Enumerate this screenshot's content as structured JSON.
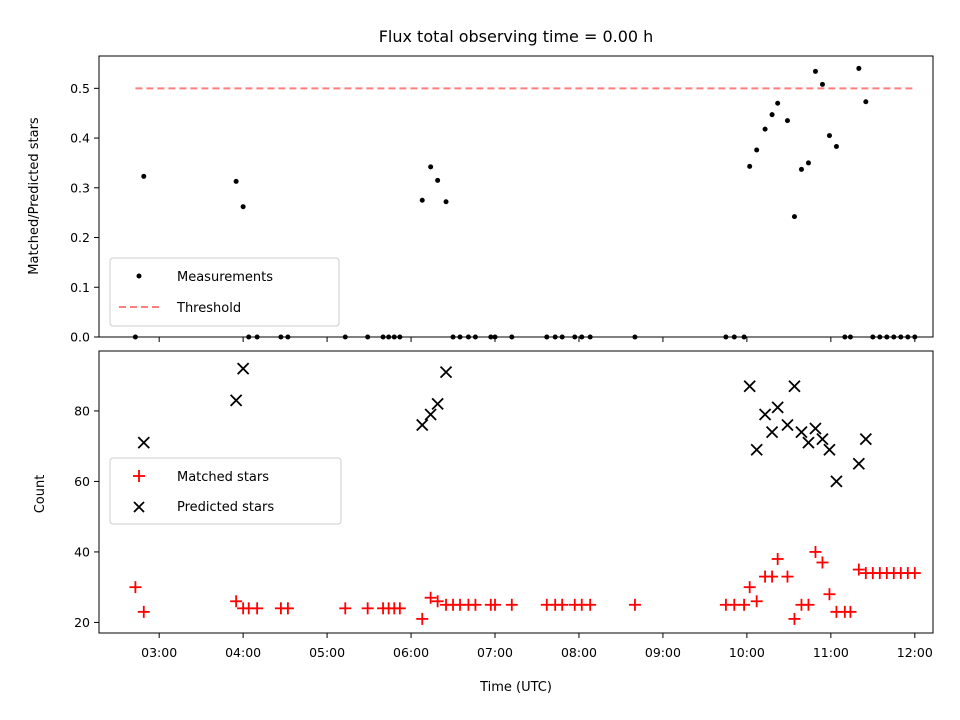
{
  "chart_data": [
    {
      "type": "scatter",
      "title": "Flux total observing time = 0.00 h",
      "xlabel": "",
      "ylabel": "Matched/Predicted stars",
      "xlim": [
        "02:17",
        "12:13"
      ],
      "ylim": [
        0,
        0.565
      ],
      "yticks": [
        "0.0",
        "0.1",
        "0.2",
        "0.3",
        "0.4",
        "0.5"
      ],
      "legend_position": "lower-left",
      "series": [
        {
          "name": "Measurements",
          "marker": "dot",
          "color": "#000000",
          "points": [
            [
              "02:43",
              0
            ],
            [
              "02:49",
              0.323
            ],
            [
              "03:55",
              0.313
            ],
            [
              "04:00",
              0.262
            ],
            [
              "04:04",
              0
            ],
            [
              "04:10",
              0
            ],
            [
              "04:27",
              0
            ],
            [
              "04:32",
              0
            ],
            [
              "05:13",
              0
            ],
            [
              "05:29",
              0
            ],
            [
              "05:40",
              0
            ],
            [
              "05:44",
              0
            ],
            [
              "05:48",
              0
            ],
            [
              "05:52",
              0
            ],
            [
              "06:08",
              0.275
            ],
            [
              "06:14",
              0.342
            ],
            [
              "06:19",
              0.315
            ],
            [
              "06:25",
              0.272
            ],
            [
              "06:30",
              0
            ],
            [
              "06:35",
              0
            ],
            [
              "06:41",
              0
            ],
            [
              "06:46",
              0
            ],
            [
              "06:57",
              0
            ],
            [
              "07:00",
              0
            ],
            [
              "07:12",
              0
            ],
            [
              "07:37",
              0
            ],
            [
              "07:43",
              0
            ],
            [
              "07:48",
              0
            ],
            [
              "07:57",
              0
            ],
            [
              "08:02",
              0
            ],
            [
              "08:08",
              0
            ],
            [
              "08:40",
              0
            ],
            [
              "09:45",
              0
            ],
            [
              "09:51",
              0
            ],
            [
              "09:58",
              0
            ],
            [
              "10:02",
              0.343
            ],
            [
              "10:07",
              0.376
            ],
            [
              "10:13",
              0.418
            ],
            [
              "10:18",
              0.447
            ],
            [
              "10:22",
              0.47
            ],
            [
              "10:29",
              0.435
            ],
            [
              "10:34",
              0.242
            ],
            [
              "10:39",
              0.337
            ],
            [
              "10:44",
              0.35
            ],
            [
              "10:49",
              0.534
            ],
            [
              "10:54",
              0.508
            ],
            [
              "10:59",
              0.405
            ],
            [
              "11:04",
              0.383
            ],
            [
              "11:10",
              0
            ],
            [
              "11:14",
              0
            ],
            [
              "11:20",
              0.54
            ],
            [
              "11:25",
              0.473
            ],
            [
              "11:30",
              0
            ],
            [
              "11:35",
              0
            ],
            [
              "11:40",
              0
            ],
            [
              "11:45",
              0
            ],
            [
              "11:50",
              0
            ],
            [
              "11:55",
              0
            ],
            [
              "12:00",
              0
            ]
          ]
        },
        {
          "name": "Threshold",
          "style": "dashed",
          "color": "#ff7f7f",
          "x": [
            "02:43",
            "12:00"
          ],
          "y": [
            0.5,
            0.5
          ]
        }
      ]
    },
    {
      "type": "scatter",
      "title": "",
      "xlabel": "Time (UTC)",
      "ylabel": "Count",
      "xlim": [
        "02:17",
        "12:13"
      ],
      "ylim": [
        17,
        97
      ],
      "yticks": [
        "20",
        "40",
        "60",
        "80"
      ],
      "xticks": [
        "03:00",
        "04:00",
        "05:00",
        "06:00",
        "07:00",
        "08:00",
        "09:00",
        "10:00",
        "11:00",
        "12:00"
      ],
      "legend_position": "center-left",
      "series": [
        {
          "name": "Matched stars",
          "marker": "plus",
          "color": "#ff0000",
          "points": [
            [
              "02:43",
              30
            ],
            [
              "02:49",
              23
            ],
            [
              "03:55",
              26
            ],
            [
              "04:00",
              24
            ],
            [
              "04:04",
              24
            ],
            [
              "04:10",
              24
            ],
            [
              "04:27",
              24
            ],
            [
              "04:32",
              24
            ],
            [
              "05:13",
              24
            ],
            [
              "05:29",
              24
            ],
            [
              "05:40",
              24
            ],
            [
              "05:44",
              24
            ],
            [
              "05:48",
              24
            ],
            [
              "05:52",
              24
            ],
            [
              "06:08",
              21
            ],
            [
              "06:14",
              27
            ],
            [
              "06:19",
              26
            ],
            [
              "06:25",
              25
            ],
            [
              "06:30",
              25
            ],
            [
              "06:35",
              25
            ],
            [
              "06:41",
              25
            ],
            [
              "06:46",
              25
            ],
            [
              "06:57",
              25
            ],
            [
              "07:00",
              25
            ],
            [
              "07:12",
              25
            ],
            [
              "07:37",
              25
            ],
            [
              "07:43",
              25
            ],
            [
              "07:48",
              25
            ],
            [
              "07:57",
              25
            ],
            [
              "08:02",
              25
            ],
            [
              "08:08",
              25
            ],
            [
              "08:40",
              25
            ],
            [
              "09:45",
              25
            ],
            [
              "09:51",
              25
            ],
            [
              "09:58",
              25
            ],
            [
              "10:02",
              30
            ],
            [
              "10:07",
              26
            ],
            [
              "10:13",
              33
            ],
            [
              "10:18",
              33
            ],
            [
              "10:22",
              38
            ],
            [
              "10:29",
              33
            ],
            [
              "10:34",
              21
            ],
            [
              "10:39",
              25
            ],
            [
              "10:44",
              25
            ],
            [
              "10:49",
              40
            ],
            [
              "10:54",
              37
            ],
            [
              "10:59",
              28
            ],
            [
              "11:04",
              23
            ],
            [
              "11:10",
              23
            ],
            [
              "11:14",
              23
            ],
            [
              "11:20",
              35
            ],
            [
              "11:25",
              34
            ],
            [
              "11:30",
              34
            ],
            [
              "11:35",
              34
            ],
            [
              "11:40",
              34
            ],
            [
              "11:45",
              34
            ],
            [
              "11:50",
              34
            ],
            [
              "11:55",
              34
            ],
            [
              "12:00",
              34
            ]
          ]
        },
        {
          "name": "Predicted stars",
          "marker": "x",
          "color": "#000000",
          "points": [
            [
              "02:49",
              71
            ],
            [
              "03:55",
              83
            ],
            [
              "04:00",
              92
            ],
            [
              "06:08",
              76
            ],
            [
              "06:14",
              79
            ],
            [
              "06:19",
              82
            ],
            [
              "06:25",
              91
            ],
            [
              "10:02",
              87
            ],
            [
              "10:07",
              69
            ],
            [
              "10:13",
              79
            ],
            [
              "10:18",
              74
            ],
            [
              "10:22",
              81
            ],
            [
              "10:29",
              76
            ],
            [
              "10:34",
              87
            ],
            [
              "10:39",
              74
            ],
            [
              "10:44",
              71
            ],
            [
              "10:49",
              75
            ],
            [
              "10:54",
              72
            ],
            [
              "10:59",
              69
            ],
            [
              "11:04",
              60
            ],
            [
              "11:20",
              65
            ],
            [
              "11:25",
              72
            ]
          ]
        }
      ]
    }
  ]
}
